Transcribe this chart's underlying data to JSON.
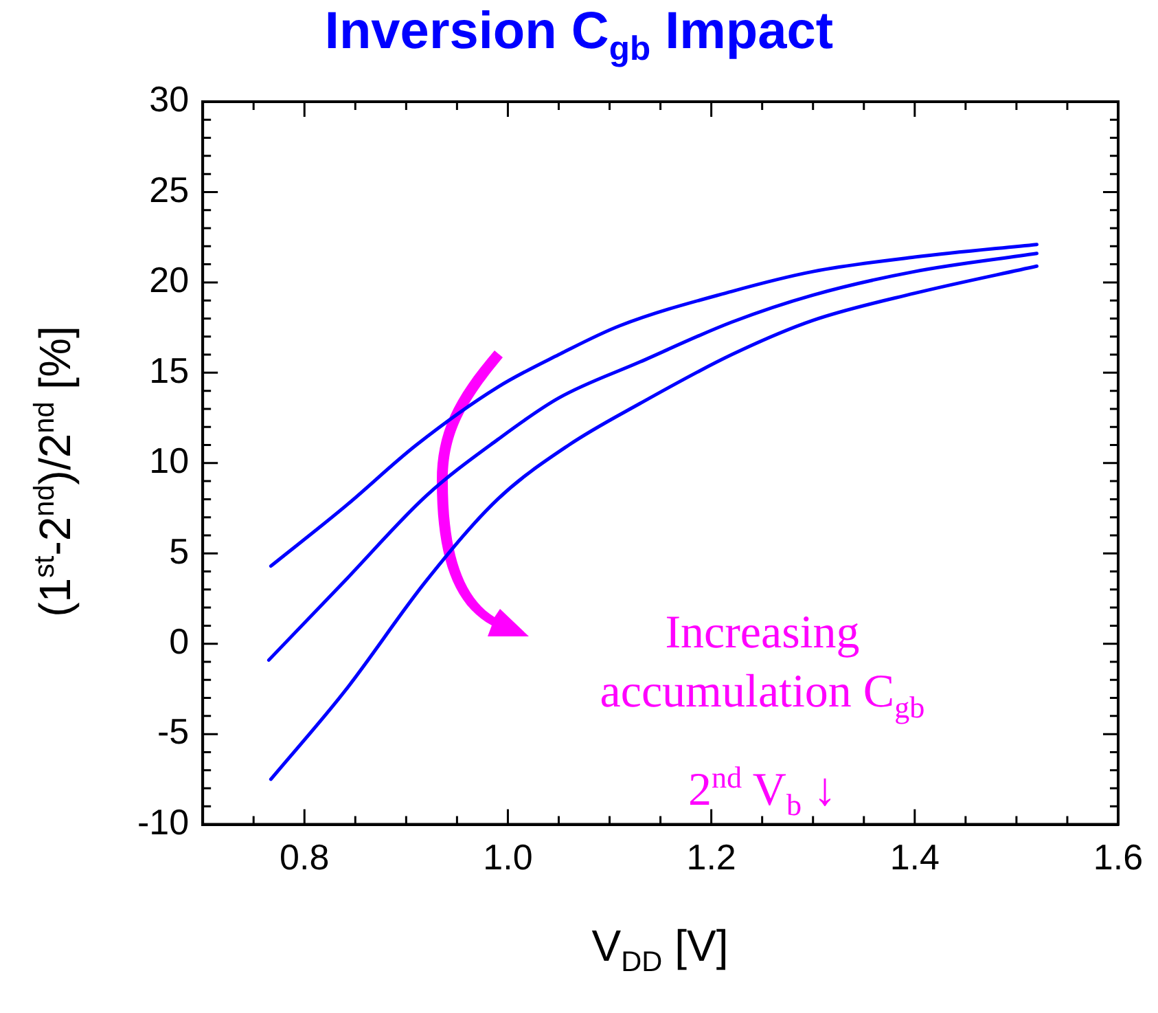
{
  "chart_data": {
    "type": "line",
    "title": "Inversion C$_{gb}$ Impact",
    "xlabel": "V$_{DD}$ [V]",
    "ylabel": "(1$^{st}$-2$^{nd}$)/2$^{nd}$ [%]",
    "annotations": [
      "Increasing accumulation C$_{gb}$",
      "2$^{nd}$ V$_{b}$ ↓"
    ],
    "xlim": [
      0.7,
      1.6
    ],
    "xticks": [
      {
        "value": 0.75,
        "label": null
      },
      0.8,
      {
        "value": 0.85,
        "label": null
      },
      {
        "value": 0.9,
        "label": null
      },
      {
        "value": 0.95,
        "label": null
      },
      {
        "value": 1.0,
        "label": "1.0"
      },
      {
        "value": 1.05,
        "label": null
      },
      {
        "value": 1.1,
        "label": null
      },
      {
        "value": 1.15,
        "label": null
      },
      1.2,
      {
        "value": 1.25,
        "label": null
      },
      {
        "value": 1.3,
        "label": null
      },
      {
        "value": 1.35,
        "label": null
      },
      1.4,
      {
        "value": 1.45,
        "label": null
      },
      {
        "value": 1.5,
        "label": null
      },
      {
        "value": 1.55,
        "label": null
      },
      1.6
    ],
    "ylim": [
      -10,
      30
    ],
    "yticks": [
      -10,
      {
        "value": -9,
        "label": null
      },
      {
        "value": -8,
        "label": null
      },
      {
        "value": -7,
        "label": null
      },
      {
        "value": -6,
        "label": null
      },
      -5,
      {
        "value": -4,
        "label": null
      },
      {
        "value": -3,
        "label": null
      },
      {
        "value": -2,
        "label": null
      },
      {
        "value": -1,
        "label": null
      },
      0,
      {
        "value": 1,
        "label": null
      },
      {
        "value": 2,
        "label": null
      },
      {
        "value": 3,
        "label": null
      },
      {
        "value": 4,
        "label": null
      },
      5,
      {
        "value": 6,
        "label": null
      },
      {
        "value": 7,
        "label": null
      },
      {
        "value": 8,
        "label": null
      },
      {
        "value": 9,
        "label": null
      },
      10,
      {
        "value": 11,
        "label": null
      },
      {
        "value": 12,
        "label": null
      },
      {
        "value": 13,
        "label": null
      },
      {
        "value": 14,
        "label": null
      },
      15,
      {
        "value": 16,
        "label": null
      },
      {
        "value": 17,
        "label": null
      },
      {
        "value": 18,
        "label": null
      },
      {
        "value": 19,
        "label": null
      },
      20,
      {
        "value": 21,
        "label": null
      },
      {
        "value": 22,
        "label": null
      },
      {
        "value": 23,
        "label": null
      },
      {
        "value": 24,
        "label": null
      },
      25,
      {
        "value": 26,
        "label": null
      },
      {
        "value": 27,
        "label": null
      },
      {
        "value": 28,
        "label": null
      },
      {
        "value": 29,
        "label": null
      },
      30
    ],
    "grid": false,
    "legend": false,
    "marker": "none",
    "line_style": "solid",
    "series": [
      {
        "color": "#0000ff",
        "x": [
          0.767,
          0.84,
          0.91,
          0.99,
          1.05,
          1.11,
          1.22,
          1.3,
          1.4,
          1.52
        ],
        "values": [
          4.3,
          7.6,
          11.0,
          14.2,
          16.0,
          17.6,
          19.5,
          20.6,
          21.4,
          22.1
        ]
      },
      {
        "color": "#0000ff",
        "x": [
          0.765,
          0.84,
          0.92,
          0.99,
          1.05,
          1.13,
          1.22,
          1.3,
          1.4,
          1.52
        ],
        "values": [
          -0.9,
          3.5,
          8.2,
          11.3,
          13.6,
          15.6,
          17.8,
          19.3,
          20.6,
          21.6
        ]
      },
      {
        "color": "#0000ff",
        "x": [
          0.767,
          0.84,
          0.92,
          0.99,
          1.06,
          1.13,
          1.22,
          1.3,
          1.4,
          1.52
        ],
        "values": [
          -7.5,
          -2.6,
          3.5,
          8.0,
          11.0,
          13.3,
          16.0,
          17.9,
          19.4,
          20.9
        ]
      }
    ]
  }
}
